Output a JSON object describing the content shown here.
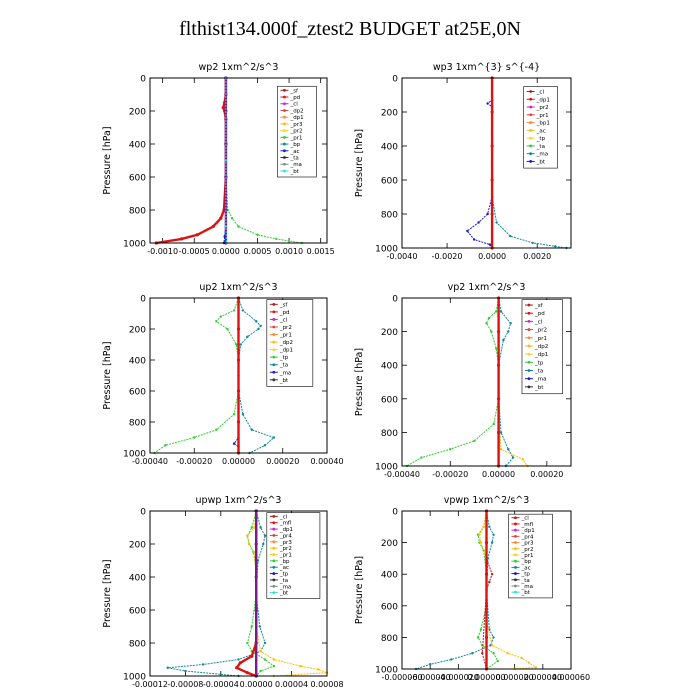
{
  "title": "flthist134.000f_ztest2  BUDGET at25E,0N",
  "colors": {
    "red": "#dd1111",
    "purple": "#7a1a8a",
    "green": "#33cc33",
    "blue": "#1a1acc",
    "orange": "#ffbb11",
    "teal": "#118899",
    "cyan": "#33dddd",
    "magenta": "#cc22cc",
    "darkred": "#aa2222",
    "gray": "#888888",
    "brown": "#aa6633"
  },
  "chart_data": [
    {
      "id": "wp2",
      "type": "line",
      "title": "wp2  1xm^2/s^3",
      "xlabel": "",
      "ylabel": "Pressure [hPa]",
      "xlim": [
        -0.0012,
        0.0016
      ],
      "ylim": [
        1000,
        0
      ],
      "grid": false,
      "xticks": [
        -0.001,
        -0.0005,
        0,
        0.0005,
        0.001,
        0.0015
      ],
      "xtick_labels": [
        "-0.0010",
        "-0.0005",
        "0.0000",
        "0.0005",
        "0.0010",
        "0.0015"
      ],
      "yticks": [
        0,
        200,
        400,
        600,
        800,
        1000
      ],
      "legend_position": "top-right",
      "legend": [
        "_sf",
        "_pd",
        "_cl",
        "_dp2",
        "_dp1",
        "_pr3",
        "_pr2",
        "_pr1",
        "_bp",
        "_ac",
        "_ta",
        "_ma",
        "_bt"
      ],
      "series": [
        {
          "color": "green",
          "y": [
            0,
            100,
            150,
            180,
            200,
            250,
            400,
            600,
            800,
            850,
            900,
            950,
            975,
            1000
          ],
          "x": [
            0,
            0,
            -3e-05,
            -5e-05,
            -2e-05,
            0,
            0,
            0,
            3e-05,
            0.0001,
            0.0002,
            0.0005,
            0.0008,
            0.0012
          ]
        },
        {
          "color": "red",
          "y": [
            0,
            100,
            150,
            180,
            200,
            250,
            400,
            600,
            800,
            850,
            900,
            950,
            975,
            1000
          ],
          "x": [
            0,
            0,
            -2e-05,
            -4e-05,
            -2e-05,
            0,
            0,
            0,
            -3e-05,
            -8e-05,
            -0.0002,
            -0.00045,
            -0.0007,
            -0.0011
          ]
        },
        {
          "color": "purple",
          "y": [
            0,
            200,
            400,
            600,
            800,
            1000
          ],
          "x": [
            0,
            0,
            0,
            0,
            0,
            0
          ]
        },
        {
          "color": "blue",
          "y": [
            0,
            500,
            900,
            960,
            1000
          ],
          "x": [
            0,
            0,
            0,
            -2e-05,
            -3e-05
          ]
        },
        {
          "color": "cyan",
          "y": [
            0,
            500,
            900,
            1000
          ],
          "x": [
            0,
            0,
            0,
            1e-05
          ]
        }
      ]
    },
    {
      "id": "wp3",
      "type": "line",
      "title": "wp3  1xm^{3} s^{-4}",
      "xlabel": "",
      "ylabel": "Pressure [hPa]",
      "xlim": [
        -0.004,
        0.0035
      ],
      "ylim": [
        1000,
        0
      ],
      "grid": false,
      "xticks": [
        -0.004,
        -0.002,
        0,
        0.002
      ],
      "xtick_labels": [
        "-0.0040",
        "-0.0020",
        "0.0000",
        "0.0020"
      ],
      "yticks": [
        0,
        200,
        400,
        600,
        800,
        1000
      ],
      "legend_position": "top-right",
      "legend": [
        "_cl",
        "_dp1",
        "_pr2",
        "_pr1",
        "_bp1",
        "_ac",
        "_tp",
        "_ta",
        "_ma",
        "_bt"
      ],
      "series": [
        {
          "color": "blue",
          "y": [
            0,
            130,
            150,
            170,
            200,
            400,
            700,
            800,
            850,
            900,
            950,
            980,
            1000
          ],
          "x": [
            0,
            0,
            -0.0002,
            0,
            0,
            0,
            0,
            -0.0002,
            -0.0006,
            -0.0011,
            -0.0008,
            -0.0001,
            0
          ]
        },
        {
          "color": "teal",
          "y": [
            0,
            700,
            850,
            930,
            970,
            990,
            1000
          ],
          "x": [
            0,
            0,
            0.0002,
            0.0008,
            0.0018,
            0.0028,
            0.0033
          ]
        },
        {
          "color": "red",
          "y": [
            0,
            200,
            400,
            600,
            800,
            1000
          ],
          "x": [
            0,
            0,
            0,
            0,
            0,
            0
          ]
        }
      ]
    },
    {
      "id": "up2",
      "type": "line",
      "title": "up2  1xm^2/s^3",
      "xlabel": "",
      "ylabel": "Pressure [hPa]",
      "xlim": [
        -0.0004,
        0.0004
      ],
      "ylim": [
        1000,
        0
      ],
      "grid": false,
      "xticks": [
        -0.0004,
        -0.0002,
        0,
        0.0002,
        0.0004
      ],
      "xtick_labels": [
        "-0.00040",
        "-0.00020",
        "0.00000",
        "0.00020",
        "0.00040"
      ],
      "yticks": [
        0,
        200,
        400,
        600,
        800,
        1000
      ],
      "legend_position": "top-right",
      "legend": [
        "_sf",
        "_pd",
        "_cl",
        "_pr2",
        "_pr1",
        "_dp2",
        "_dp1",
        "_tp",
        "_ta",
        "_ma",
        "_bt"
      ],
      "series": [
        {
          "color": "green",
          "y": [
            0,
            80,
            120,
            150,
            200,
            300,
            400,
            600,
            750,
            850,
            900,
            950,
            1000
          ],
          "x": [
            0,
            -2e-05,
            -8e-05,
            -0.0001,
            -5e-05,
            -1e-05,
            0,
            0,
            -2e-05,
            -0.0001,
            -0.0002,
            -0.00033,
            -0.00038
          ]
        },
        {
          "color": "teal",
          "y": [
            0,
            80,
            150,
            180,
            200,
            250,
            300,
            400,
            600,
            750,
            850,
            900,
            950,
            1000
          ],
          "x": [
            0,
            2e-05,
            8e-05,
            0.0001,
            9e-05,
            4e-05,
            1e-05,
            0,
            0,
            2e-05,
            6e-05,
            0.00016,
            0.00012,
            5e-05
          ]
        },
        {
          "color": "blue",
          "y": [
            0,
            500,
            900,
            940,
            960,
            1000
          ],
          "x": [
            0,
            0,
            0,
            -2e-05,
            0,
            0
          ]
        },
        {
          "color": "red",
          "y": [
            0,
            200,
            400,
            600,
            800,
            1000
          ],
          "x": [
            0,
            0,
            0,
            0,
            0,
            0
          ]
        }
      ]
    },
    {
      "id": "vp2",
      "type": "line",
      "title": "vp2  1xm^2/s^3",
      "xlabel": "",
      "ylabel": "Pressure [hPa]",
      "xlim": [
        -0.0004,
        0.0003
      ],
      "ylim": [
        1000,
        0
      ],
      "grid": false,
      "xticks": [
        -0.0004,
        -0.0002,
        0,
        0.0002
      ],
      "xtick_labels": [
        "-0.00040",
        "-0.00020",
        "0.00000",
        "0.00020"
      ],
      "yticks": [
        0,
        200,
        400,
        600,
        800,
        1000
      ],
      "legend_position": "top-right",
      "legend": [
        "_sf",
        "_pd",
        "_cl",
        "_pr2",
        "_pr1",
        "_dp2",
        "_dp1",
        "_tp",
        "_ta",
        "_ma",
        "_bt"
      ],
      "series": [
        {
          "color": "green",
          "y": [
            0,
            80,
            120,
            150,
            200,
            300,
            400,
            600,
            750,
            850,
            900,
            950,
            1000
          ],
          "x": [
            0,
            -1e-05,
            -4e-05,
            -5e-05,
            -3e-05,
            -1e-05,
            0,
            0,
            -2e-05,
            -0.0001,
            -0.0002,
            -0.00032,
            -0.00038
          ]
        },
        {
          "color": "teal",
          "y": [
            0,
            80,
            150,
            200,
            250,
            400,
            600,
            800,
            900,
            950,
            1000
          ],
          "x": [
            0,
            1e-05,
            5e-05,
            4e-05,
            2e-05,
            0,
            0,
            1e-05,
            4e-05,
            6e-05,
            3e-05
          ]
        },
        {
          "color": "orange",
          "y": [
            0,
            700,
            900,
            960,
            1000
          ],
          "x": [
            0,
            0,
            1e-05,
            0.0001,
            0.00012
          ]
        },
        {
          "color": "red",
          "y": [
            0,
            200,
            400,
            600,
            800,
            1000
          ],
          "x": [
            0,
            0,
            0,
            0,
            0,
            0
          ]
        }
      ]
    },
    {
      "id": "upwp",
      "type": "line",
      "title": "upwp  1xm^2/s^3",
      "xlabel": "",
      "ylabel": "Pressure [hPa]",
      "xlim": [
        -0.00012,
        8e-05
      ],
      "ylim": [
        1000,
        0
      ],
      "grid": false,
      "xticks": [
        -0.00012,
        -8e-05,
        -4e-05,
        0,
        4e-05,
        8e-05
      ],
      "xtick_labels": [
        "-0.00012",
        "-0.00008",
        "-0.00004",
        "0.00000",
        "0.00004",
        "0.00008"
      ],
      "yticks": [
        0,
        200,
        400,
        600,
        800,
        1000
      ],
      "legend_position": "top-right",
      "legend": [
        "_cl",
        "_mfl",
        "_dp1",
        "_pr4",
        "_pr3",
        "_pr2",
        "_pr1",
        "_bp",
        "_ac",
        "_tp",
        "_ta",
        "_ma",
        "_bt"
      ],
      "series": [
        {
          "color": "green",
          "y": [
            0,
            100,
            150,
            200,
            250,
            350,
            500,
            700,
            800,
            850,
            900,
            940,
            970,
            1000
          ],
          "x": [
            0,
            -5e-06,
            -1e-05,
            -8e-06,
            -3e-06,
            0,
            0,
            -5e-06,
            -1e-05,
            -5e-06,
            1e-05,
            2e-05,
            5e-06,
            0
          ]
        },
        {
          "color": "teal",
          "y": [
            0,
            100,
            150,
            200,
            300,
            500,
            700,
            800,
            850,
            900,
            930,
            950,
            970,
            1000
          ],
          "x": [
            0,
            5e-06,
            1e-05,
            8e-06,
            2e-06,
            0,
            4e-06,
            1e-05,
            5e-06,
            -2e-05,
            -6e-05,
            -0.0001,
            -8e-05,
            -2e-05
          ]
        },
        {
          "color": "orange",
          "y": [
            0,
            100,
            150,
            200,
            250,
            400,
            700,
            850,
            900,
            940,
            960,
            980,
            1000
          ],
          "x": [
            0,
            -2e-06,
            -1e-05,
            -8e-06,
            -2e-06,
            0,
            0,
            5e-06,
            2e-05,
            5e-05,
            7e-05,
            8e-05,
            2e-05
          ]
        },
        {
          "color": "red",
          "y": [
            0,
            800,
            880,
            920,
            950,
            980,
            1000
          ],
          "x": [
            0,
            0,
            -5e-06,
            -1.8e-05,
            -2.2e-05,
            -1e-05,
            0
          ]
        },
        {
          "color": "purple",
          "y": [
            0,
            200,
            400,
            600,
            800,
            1000
          ],
          "x": [
            0,
            0,
            0,
            0,
            0,
            0
          ]
        }
      ]
    },
    {
      "id": "vpwp",
      "type": "line",
      "title": "vpwp  1xm^2/s^3",
      "xlabel": "",
      "ylabel": "Pressure [hPa]",
      "xlim": [
        -6e-05,
        6e-05
      ],
      "ylim": [
        1000,
        0
      ],
      "grid": false,
      "xticks": [
        -6e-05,
        -4e-05,
        -2e-05,
        0,
        2e-05,
        4e-05,
        6e-05
      ],
      "xtick_labels": [
        "-0.000060",
        "-0.000040",
        "-0.000020",
        "0.000000",
        "0.000020",
        "0.000040",
        "0.000060"
      ],
      "yticks": [
        0,
        200,
        400,
        600,
        800,
        1000
      ],
      "legend_position": "top-right",
      "legend": [
        "_cl",
        "_mfl",
        "_dp1",
        "_pr4",
        "_pr3",
        "_pr2",
        "_pr1",
        "_bp",
        "_ac",
        "_tp",
        "_ta",
        "_ma",
        "_bt"
      ],
      "series": [
        {
          "color": "green",
          "y": [
            0,
            100,
            150,
            200,
            250,
            400,
            600,
            750,
            800,
            850,
            900,
            950,
            1000
          ],
          "x": [
            0,
            -2e-06,
            -6e-06,
            -5e-06,
            -2e-06,
            0,
            0,
            -4e-06,
            -6e-06,
            -3e-06,
            5e-06,
            8e-06,
            0
          ]
        },
        {
          "color": "teal",
          "y": [
            0,
            100,
            150,
            200,
            300,
            500,
            750,
            800,
            850,
            900,
            940,
            970,
            1000
          ],
          "x": [
            0,
            2e-06,
            5e-06,
            4e-06,
            1e-06,
            0,
            2e-06,
            5e-06,
            3e-06,
            -1e-05,
            -2.5e-05,
            -4e-05,
            -5e-05
          ]
        },
        {
          "color": "orange",
          "y": [
            0,
            100,
            150,
            200,
            300,
            700,
            850,
            900,
            930,
            960,
            990,
            1000
          ],
          "x": [
            0,
            -2e-06,
            -5e-06,
            -4e-06,
            0,
            0,
            4e-06,
            1.5e-05,
            2.5e-05,
            3e-05,
            3.5e-05,
            2e-05
          ]
        },
        {
          "color": "darkred",
          "y": [
            0,
            300,
            400,
            450,
            500,
            900,
            1000
          ],
          "x": [
            0,
            0,
            4e-06,
            2e-06,
            0,
            -3e-06,
            0
          ]
        },
        {
          "color": "red",
          "y": [
            0,
            200,
            400,
            600,
            800,
            1000
          ],
          "x": [
            0,
            0,
            0,
            0,
            0,
            0
          ]
        }
      ]
    }
  ]
}
